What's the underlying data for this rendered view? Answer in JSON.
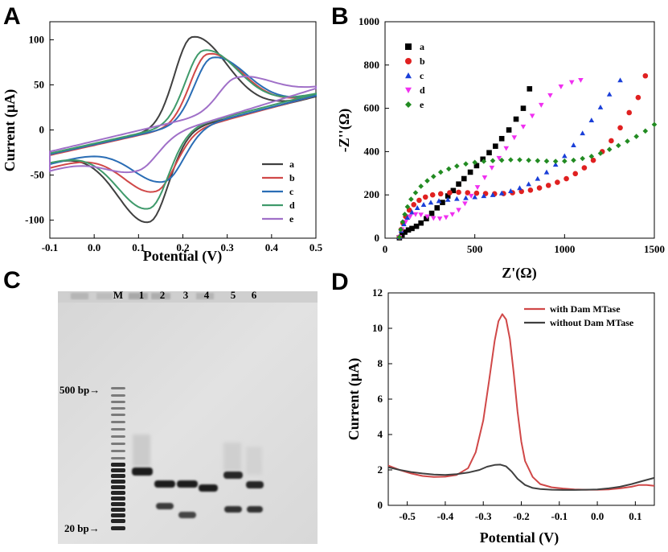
{
  "panels": {
    "A": "A",
    "B": "B",
    "C": "C",
    "D": "D"
  },
  "chart_data": [
    {
      "panel": "A",
      "type": "line",
      "xlabel": "Potential (V)",
      "ylabel": "Current (µA)",
      "xlim": [
        -0.1,
        0.5
      ],
      "ylim": [
        -120,
        120
      ],
      "xticks": [
        -0.1,
        0.0,
        0.1,
        0.2,
        0.3,
        0.4,
        0.5
      ],
      "xtick_labels": [
        "-0.1",
        "0.0",
        "0.1",
        "0.2",
        "0.3",
        "0.4",
        "0.5"
      ],
      "yticks": [
        -100,
        -50,
        0,
        50,
        100
      ],
      "ytick_labels": [
        "-100",
        "-50",
        "0",
        "50",
        "100"
      ],
      "legend_position": "bottom-right",
      "series": [
        {
          "name": "a",
          "color": "#404040",
          "anodic_peak": [
            0.22,
            103
          ],
          "cathodic_peak": [
            0.125,
            -102
          ],
          "x": [
            -0.1,
            0.5
          ],
          "y_start": [
            -26,
            -36
          ],
          "y_end": [
            37,
            37
          ]
        },
        {
          "name": "b",
          "color": "#d04848",
          "anodic_peak": [
            0.255,
            84
          ],
          "cathodic_peak": [
            0.14,
            -68
          ],
          "x": [
            -0.1,
            0.5
          ],
          "y_start": [
            -28,
            -42
          ],
          "y_end": [
            38,
            38
          ]
        },
        {
          "name": "c",
          "color": "#2a6db5",
          "anodic_peak": [
            0.265,
            80
          ],
          "cathodic_peak": [
            0.16,
            -57
          ],
          "x": [
            -0.1,
            0.5
          ],
          "y_start": [
            -27,
            -38
          ],
          "y_end": [
            38,
            38
          ]
        },
        {
          "name": "d",
          "color": "#3f9a6b",
          "anodic_peak": [
            0.245,
            88
          ],
          "cathodic_peak": [
            0.125,
            -87
          ],
          "x": [
            -0.1,
            0.5
          ],
          "y_start": [
            -26,
            -36
          ],
          "y_end": [
            40,
            40
          ]
        },
        {
          "name": "e",
          "color": "#a070c8",
          "anodic_peak": [
            0.32,
            58
          ],
          "cathodic_peak": [
            0.1,
            -45
          ],
          "x": [
            -0.1,
            0.5
          ],
          "y_start": [
            -24,
            -45
          ],
          "y_end": [
            46,
            46
          ]
        }
      ]
    },
    {
      "panel": "B",
      "type": "scatter",
      "xlabel": "Z'(Ω)",
      "ylabel": "-Z''(Ω)",
      "xlim": [
        0,
        1500
      ],
      "ylim": [
        0,
        1000
      ],
      "xticks": [
        0,
        500,
        1000,
        1500
      ],
      "xtick_labels": [
        "0",
        "500",
        "1000",
        "1500"
      ],
      "yticks": [
        0,
        200,
        400,
        600,
        800,
        1000
      ],
      "ytick_labels": [
        "0",
        "200",
        "400",
        "600",
        "800",
        "1000"
      ],
      "legend_position": "top-left",
      "series": [
        {
          "name": "a",
          "marker": "square",
          "color": "#000000",
          "points": [
            [
              80,
              2
            ],
            [
              95,
              15
            ],
            [
              110,
              28
            ],
            [
              130,
              38
            ],
            [
              150,
              45
            ],
            [
              175,
              55
            ],
            [
              200,
              70
            ],
            [
              230,
              90
            ],
            [
              260,
              115
            ],
            [
              290,
              140
            ],
            [
              320,
              165
            ],
            [
              350,
              195
            ],
            [
              380,
              220
            ],
            [
              410,
              250
            ],
            [
              440,
              275
            ],
            [
              475,
              305
            ],
            [
              510,
              335
            ],
            [
              545,
              365
            ],
            [
              580,
              395
            ],
            [
              615,
              425
            ],
            [
              650,
              460
            ],
            [
              690,
              500
            ],
            [
              730,
              550
            ],
            [
              770,
              600
            ],
            [
              805,
              690
            ]
          ]
        },
        {
          "name": "b",
          "marker": "circle",
          "color": "#e02020",
          "points": [
            [
              80,
              5
            ],
            [
              90,
              40
            ],
            [
              100,
              70
            ],
            [
              115,
              100
            ],
            [
              135,
              130
            ],
            [
              160,
              155
            ],
            [
              190,
              175
            ],
            [
              225,
              190
            ],
            [
              265,
              200
            ],
            [
              310,
              205
            ],
            [
              360,
              210
            ],
            [
              410,
              212
            ],
            [
              460,
              210
            ],
            [
              510,
              208
            ],
            [
              560,
              206
            ],
            [
              610,
              205
            ],
            [
              660,
              206
            ],
            [
              710,
              210
            ],
            [
              760,
              216
            ],
            [
              810,
              222
            ],
            [
              860,
              232
            ],
            [
              910,
              244
            ],
            [
              960,
              258
            ],
            [
              1010,
              275
            ],
            [
              1060,
              298
            ],
            [
              1110,
              325
            ],
            [
              1160,
              360
            ],
            [
              1210,
              400
            ],
            [
              1260,
              450
            ],
            [
              1310,
              510
            ],
            [
              1360,
              580
            ],
            [
              1410,
              650
            ],
            [
              1450,
              750
            ]
          ]
        },
        {
          "name": "c",
          "marker": "triangle-up",
          "color": "#1a3fd8",
          "points": [
            [
              80,
              5
            ],
            [
              90,
              35
            ],
            [
              105,
              65
            ],
            [
              125,
              95
            ],
            [
              150,
              120
            ],
            [
              180,
              140
            ],
            [
              215,
              155
            ],
            [
              255,
              165
            ],
            [
              300,
              172
            ],
            [
              350,
              178
            ],
            [
              400,
              182
            ],
            [
              450,
              186
            ],
            [
              500,
              190
            ],
            [
              550,
              195
            ],
            [
              600,
              200
            ],
            [
              650,
              208
            ],
            [
              700,
              218
            ],
            [
              750,
              232
            ],
            [
              800,
              250
            ],
            [
              850,
              275
            ],
            [
              900,
              305
            ],
            [
              950,
              340
            ],
            [
              1000,
              380
            ],
            [
              1050,
              430
            ],
            [
              1100,
              485
            ],
            [
              1150,
              545
            ],
            [
              1200,
              605
            ],
            [
              1250,
              665
            ],
            [
              1310,
              730
            ]
          ]
        },
        {
          "name": "d",
          "marker": "triangle-down",
          "color": "#f030f0",
          "points": [
            [
              80,
              5
            ],
            [
              95,
              40
            ],
            [
              115,
              75
            ],
            [
              140,
              100
            ],
            [
              170,
              110
            ],
            [
              200,
              108
            ],
            [
              235,
              100
            ],
            [
              270,
              92
            ],
            [
              305,
              90
            ],
            [
              340,
              96
            ],
            [
              375,
              110
            ],
            [
              410,
              130
            ],
            [
              445,
              160
            ],
            [
              480,
              195
            ],
            [
              515,
              235
            ],
            [
              555,
              280
            ],
            [
              595,
              325
            ],
            [
              635,
              370
            ],
            [
              675,
              415
            ],
            [
              720,
              465
            ],
            [
              770,
              515
            ],
            [
              820,
              565
            ],
            [
              870,
              615
            ],
            [
              920,
              660
            ],
            [
              980,
              700
            ],
            [
              1040,
              720
            ],
            [
              1090,
              730
            ]
          ]
        },
        {
          "name": "e",
          "marker": "diamond",
          "color": "#228b22",
          "points": [
            [
              80,
              5
            ],
            [
              88,
              40
            ],
            [
              98,
              75
            ],
            [
              110,
              110
            ],
            [
              125,
              145
            ],
            [
              145,
              180
            ],
            [
              170,
              210
            ],
            [
              200,
              240
            ],
            [
              235,
              265
            ],
            [
              270,
              285
            ],
            [
              310,
              305
            ],
            [
              355,
              320
            ],
            [
              400,
              333
            ],
            [
              450,
              343
            ],
            [
              500,
              350
            ],
            [
              550,
              355
            ],
            [
              600,
              358
            ],
            [
              650,
              360
            ],
            [
              700,
              362
            ],
            [
              750,
              362
            ],
            [
              800,
              360
            ],
            [
              850,
              358
            ],
            [
              900,
              356
            ],
            [
              950,
              355
            ],
            [
              1000,
              356
            ],
            [
              1050,
              360
            ],
            [
              1100,
              368
            ],
            [
              1150,
              378
            ],
            [
              1200,
              392
            ],
            [
              1250,
              410
            ],
            [
              1300,
              428
            ],
            [
              1350,
              448
            ],
            [
              1400,
              470
            ],
            [
              1450,
              495
            ],
            [
              1500,
              525
            ]
          ]
        }
      ]
    },
    {
      "panel": "D",
      "type": "line",
      "xlabel": "Potential (V)",
      "ylabel": "Current (µA)",
      "xlim": [
        -0.55,
        0.15
      ],
      "ylim": [
        0,
        12
      ],
      "xticks": [
        -0.5,
        -0.4,
        -0.3,
        -0.2,
        -0.1,
        0.0,
        0.1
      ],
      "xtick_labels": [
        "-0.5",
        "-0.4",
        "-0.3",
        "-0.2",
        "-0.1",
        "0.0",
        "0.1"
      ],
      "yticks": [
        0,
        2,
        4,
        6,
        8,
        10,
        12
      ],
      "ytick_labels": [
        "0",
        "2",
        "4",
        "6",
        "8",
        "10",
        "12"
      ],
      "legend_position": "top-right",
      "series": [
        {
          "name": "with Dam MTase",
          "color": "#d04848",
          "points": [
            [
              -0.55,
              2.25
            ],
            [
              -0.52,
              2.0
            ],
            [
              -0.49,
              1.8
            ],
            [
              -0.46,
              1.66
            ],
            [
              -0.43,
              1.6
            ],
            [
              -0.4,
              1.62
            ],
            [
              -0.37,
              1.72
            ],
            [
              -0.34,
              2.1
            ],
            [
              -0.32,
              3.0
            ],
            [
              -0.3,
              4.8
            ],
            [
              -0.285,
              7.0
            ],
            [
              -0.27,
              9.3
            ],
            [
              -0.26,
              10.4
            ],
            [
              -0.25,
              10.8
            ],
            [
              -0.24,
              10.5
            ],
            [
              -0.23,
              9.4
            ],
            [
              -0.22,
              7.5
            ],
            [
              -0.21,
              5.3
            ],
            [
              -0.2,
              3.6
            ],
            [
              -0.19,
              2.5
            ],
            [
              -0.17,
              1.6
            ],
            [
              -0.15,
              1.2
            ],
            [
              -0.12,
              1.02
            ],
            [
              -0.09,
              0.95
            ],
            [
              -0.06,
              0.9
            ],
            [
              -0.03,
              0.88
            ],
            [
              0.0,
              0.88
            ],
            [
              0.03,
              0.9
            ],
            [
              0.06,
              0.96
            ],
            [
              0.09,
              1.05
            ],
            [
              0.11,
              1.15
            ],
            [
              0.13,
              1.15
            ],
            [
              0.15,
              1.1
            ]
          ]
        },
        {
          "name": "without Dam MTase",
          "color": "#404040",
          "points": [
            [
              -0.55,
              2.15
            ],
            [
              -0.52,
              2.0
            ],
            [
              -0.49,
              1.88
            ],
            [
              -0.46,
              1.8
            ],
            [
              -0.43,
              1.74
            ],
            [
              -0.4,
              1.72
            ],
            [
              -0.37,
              1.76
            ],
            [
              -0.34,
              1.85
            ],
            [
              -0.31,
              2.0
            ],
            [
              -0.29,
              2.18
            ],
            [
              -0.27,
              2.28
            ],
            [
              -0.255,
              2.3
            ],
            [
              -0.24,
              2.2
            ],
            [
              -0.225,
              1.9
            ],
            [
              -0.21,
              1.5
            ],
            [
              -0.19,
              1.15
            ],
            [
              -0.17,
              0.98
            ],
            [
              -0.15,
              0.92
            ],
            [
              -0.12,
              0.88
            ],
            [
              -0.09,
              0.87
            ],
            [
              -0.06,
              0.87
            ],
            [
              -0.03,
              0.88
            ],
            [
              0.0,
              0.9
            ],
            [
              0.03,
              0.96
            ],
            [
              0.06,
              1.05
            ],
            [
              0.09,
              1.2
            ],
            [
              0.12,
              1.38
            ],
            [
              0.15,
              1.55
            ]
          ]
        }
      ]
    }
  ],
  "gel": {
    "lanes": [
      "M",
      "1",
      "2",
      "3",
      "4",
      "5",
      "6"
    ],
    "markers": [
      "500 bp→",
      "20 bp→"
    ]
  }
}
